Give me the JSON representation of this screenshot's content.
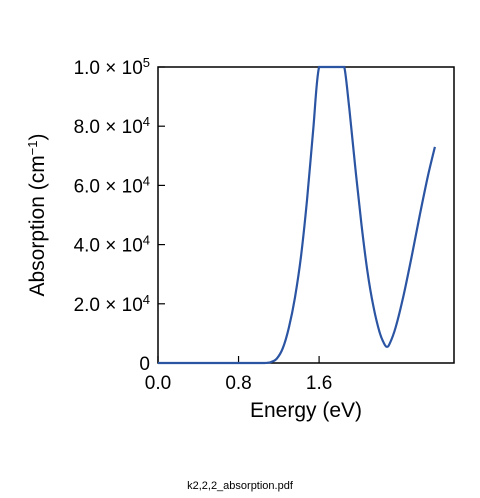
{
  "chart_data": {
    "type": "line",
    "xlabel": "Energy (eV)",
    "ylabel_parts": {
      "base": "Absorption (cm",
      "sup": "−1",
      "end": ")"
    },
    "xlim": [
      0.0,
      2.94
    ],
    "ylim": [
      0,
      100000
    ],
    "xticks": [
      {
        "value": 0.0,
        "label": "0.0"
      },
      {
        "value": 0.8,
        "label": "0.8"
      },
      {
        "value": 1.6,
        "label": "1.6"
      }
    ],
    "yticks": [
      {
        "value": 0,
        "mantissa": "0",
        "exponent": ""
      },
      {
        "value": 20000,
        "mantissa": "2.0 × 10",
        "exponent": "4"
      },
      {
        "value": 40000,
        "mantissa": "4.0 × 10",
        "exponent": "4"
      },
      {
        "value": 60000,
        "mantissa": "6.0 × 10",
        "exponent": "4"
      },
      {
        "value": 80000,
        "mantissa": "8.0 × 10",
        "exponent": "4"
      },
      {
        "value": 100000,
        "mantissa": "1.0 × 10",
        "exponent": "5"
      }
    ],
    "series": [
      {
        "color": "#2b55a3",
        "points": [
          [
            0.0,
            0
          ],
          [
            0.9,
            0
          ],
          [
            1.05,
            0
          ],
          [
            1.12,
            300
          ],
          [
            1.18,
            1500
          ],
          [
            1.24,
            5000
          ],
          [
            1.3,
            12000
          ],
          [
            1.36,
            22000
          ],
          [
            1.42,
            36000
          ],
          [
            1.48,
            55000
          ],
          [
            1.54,
            78000
          ],
          [
            1.6,
            100000
          ],
          [
            1.7,
            100000
          ],
          [
            1.8,
            100000
          ],
          [
            1.85,
            100000
          ],
          [
            1.9,
            86000
          ],
          [
            1.96,
            66000
          ],
          [
            2.02,
            47000
          ],
          [
            2.08,
            31000
          ],
          [
            2.14,
            19000
          ],
          [
            2.2,
            10500
          ],
          [
            2.24,
            7000
          ],
          [
            2.27,
            5500
          ],
          [
            2.3,
            6500
          ],
          [
            2.36,
            12000
          ],
          [
            2.44,
            23000
          ],
          [
            2.52,
            36000
          ],
          [
            2.6,
            50000
          ],
          [
            2.68,
            63000
          ],
          [
            2.75,
            73000
          ]
        ]
      }
    ],
    "grid": false,
    "legend": "none"
  },
  "footer": {
    "filename": "k2,2,2_absorption.pdf"
  }
}
